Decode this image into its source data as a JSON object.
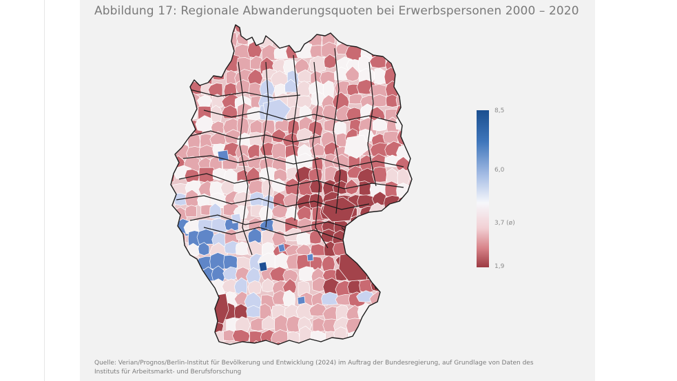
{
  "figure": {
    "title": "Abbildung 17: Regionale Abwanderungsquoten bei Erwerbspersonen 2000 – 2020",
    "source": "Quelle: Verian/Prognos/Berlin-Institut für Bevölkerung und Entwicklung (2024) im Auftrag der Bundesregierung, auf Grundlage von Daten des Instituts für Arbeitsmarkt- und Berufsforschung"
  },
  "legend": {
    "max_label": "8,5",
    "mid_label": "6,0",
    "avg_label": "3,7 (ø)",
    "min_label": "1,9",
    "colors": {
      "high": "#1b4f8f",
      "mid_high": "#a9bfe6",
      "average": "#f6f7fb",
      "mid_low": "#d78288",
      "low": "#9c3a42"
    }
  },
  "map_colors": {
    "land_base": "#e9c6c9",
    "border": "#1a1a1a",
    "dark_red": "#a3434b",
    "red": "#c96a72",
    "light_red": "#e3a7ad",
    "pale": "#f1dadc",
    "white": "#f7f3f4",
    "light_blue": "#c9d3ef",
    "blue": "#5f86c8",
    "dark_blue": "#1f4f94"
  }
}
